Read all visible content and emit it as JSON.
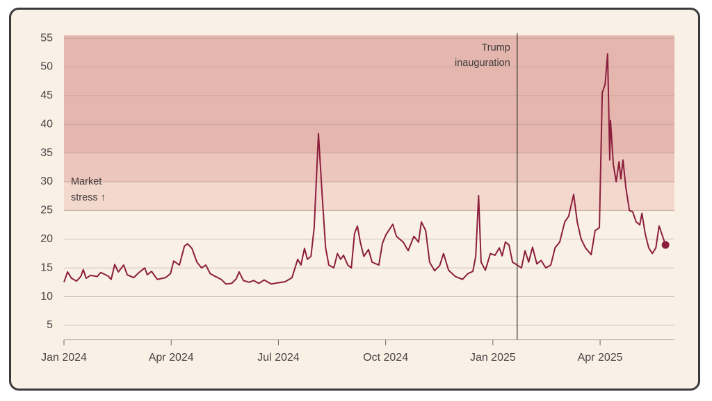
{
  "chart_data": {
    "type": "line",
    "x": [
      0,
      0.1,
      0.21,
      0.35,
      0.47,
      0.54,
      0.62,
      0.74,
      0.93,
      1.03,
      1.23,
      1.32,
      1.42,
      1.52,
      1.67,
      1.77,
      1.95,
      2.1,
      2.26,
      2.33,
      2.45,
      2.61,
      2.84,
      2.98,
      3.07,
      3.23,
      3.37,
      3.46,
      3.58,
      3.72,
      3.85,
      3.97,
      4.09,
      4.24,
      4.4,
      4.53,
      4.69,
      4.82,
      4.9,
      5.02,
      5.18,
      5.31,
      5.45,
      5.6,
      5.8,
      5.99,
      6.19,
      6.38,
      6.54,
      6.63,
      6.73,
      6.81,
      6.91,
      7,
      7.12,
      7.22,
      7.32,
      7.41,
      7.55,
      7.65,
      7.74,
      7.82,
      7.94,
      8.04,
      8.13,
      8.21,
      8.29,
      8.39,
      8.52,
      8.62,
      8.81,
      8.91,
      9.01,
      9.2,
      9.3,
      9.49,
      9.63,
      9.79,
      9.92,
      10,
      10.12,
      10.23,
      10.37,
      10.51,
      10.62,
      10.76,
      10.95,
      11.15,
      11.3,
      11.44,
      11.52,
      11.6,
      11.67,
      11.79,
      11.93,
      12.06,
      12.18,
      12.26,
      12.35,
      12.45,
      12.55,
      12.68,
      12.8,
      12.9,
      13,
      13.11,
      13.23,
      13.35,
      13.48,
      13.62,
      13.74,
      13.87,
      14.01,
      14.12,
      14.26,
      14.36,
      14.47,
      14.59,
      14.75,
      14.86,
      14.98,
      15.06,
      15.14,
      15.21,
      15.27,
      15.29,
      15.37,
      15.45,
      15.53,
      15.58,
      15.64,
      15.72,
      15.82,
      15.91,
      16.01,
      16.11,
      16.17,
      16.26,
      16.36,
      16.46,
      16.56,
      16.65,
      16.75,
      16.83
    ],
    "series": [
      {
        "color": "#8b1e3c",
        "values": [
          12.5,
          14.3,
          13.2,
          12.7,
          13.5,
          14.7,
          13.2,
          13.7,
          13.5,
          14.2,
          13.6,
          13,
          15.6,
          14.3,
          15.5,
          13.8,
          13.3,
          14.2,
          15,
          13.8,
          14.4,
          13,
          13.3,
          14,
          16.2,
          15.5,
          18.8,
          19.2,
          18.4,
          16,
          15,
          15.5,
          14,
          13.5,
          13,
          12.2,
          12.3,
          13.1,
          14.3,
          12.8,
          12.5,
          12.8,
          12.3,
          12.9,
          12.2,
          12.4,
          12.6,
          13.3,
          16.5,
          15.5,
          18.4,
          16.5,
          17,
          22,
          38.4,
          28,
          18.5,
          15.5,
          15,
          17.5,
          16.5,
          17.2,
          15.5,
          15,
          21,
          22.3,
          19.5,
          17,
          18.2,
          16,
          15.5,
          19.3,
          20.8,
          22.6,
          20.5,
          19.5,
          18,
          20.5,
          19.5,
          23,
          21.5,
          16,
          14.5,
          15.4,
          17.5,
          14.6,
          13.5,
          13,
          14,
          14.4,
          17,
          27.6,
          16,
          14.6,
          17.5,
          17.2,
          18.5,
          17.1,
          19.5,
          19,
          16,
          15.5,
          15,
          18,
          16,
          18.6,
          15.7,
          16.3,
          15,
          15.5,
          18.5,
          19.5,
          23,
          24,
          27.8,
          23,
          20,
          18.5,
          17.3,
          21.5,
          22,
          45.5,
          47,
          52.3,
          33.8,
          40.7,
          33,
          30,
          33.5,
          30.5,
          33.8,
          29,
          25,
          24.8,
          23,
          22.5,
          24.5,
          21,
          18.5,
          17.5,
          18.5,
          22.3,
          20.5,
          19
        ]
      }
    ],
    "xlim": [
      0,
      17.08
    ],
    "xticks": [
      {
        "value": 0,
        "label": "Jan 2024"
      },
      {
        "value": 3,
        "label": "Apr 2024"
      },
      {
        "value": 6,
        "label": "Jul 2024"
      },
      {
        "value": 9,
        "label": "Oct 2024"
      },
      {
        "value": 12,
        "label": "Jan 2025"
      },
      {
        "value": 15,
        "label": "Apr 2025"
      }
    ],
    "ylim": [
      2.5,
      55.5
    ],
    "yticks": [
      5,
      10,
      15,
      20,
      25,
      30,
      35,
      40,
      45,
      50,
      55
    ],
    "grid": true,
    "bands": [
      {
        "from": 25,
        "to": 30,
        "color": "#f3d8ce"
      },
      {
        "from": 30,
        "to": 35,
        "color": "#ecc6bc"
      },
      {
        "from": 35,
        "to": 55.5,
        "color": "#e5b6ad"
      }
    ],
    "annotations": [
      {
        "lines": [
          "Trump",
          "inauguration"
        ],
        "x": 12.68
      },
      {
        "lines": [
          "Market",
          "stress ↑"
        ]
      }
    ]
  }
}
